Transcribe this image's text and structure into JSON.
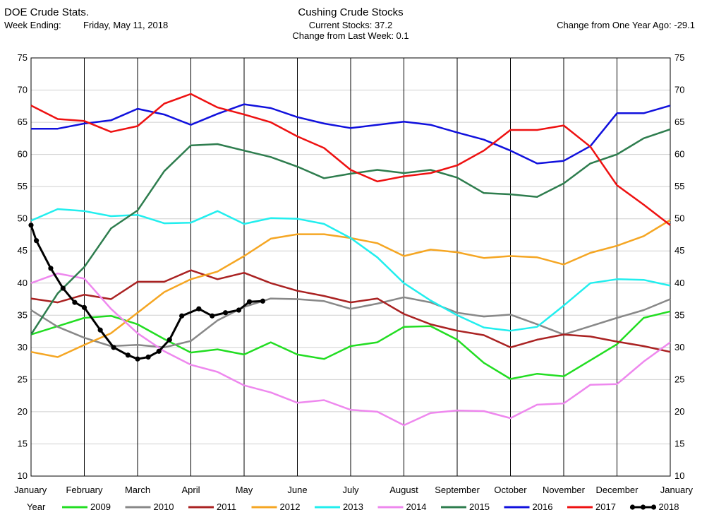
{
  "header": {
    "left_title": "DOE Crude Stats.",
    "week_label": "Week Ending:",
    "week_date": "Friday, May 11, 2018",
    "center_title": "Cushing Crude Stocks",
    "current_stocks": "Current Stocks:  37.2",
    "change_week": "Change from Last Week:  0.1",
    "change_year": "Change from One Year Ago: -29.1"
  },
  "chart_data": {
    "type": "line",
    "title": "Cushing Crude Stocks",
    "ylim": [
      10,
      75
    ],
    "yticks": [
      10,
      15,
      20,
      25,
      30,
      35,
      40,
      45,
      50,
      55,
      60,
      65,
      70,
      75
    ],
    "xlim": [
      0,
      12
    ],
    "xtick_labels": [
      "January",
      "February",
      "March",
      "April",
      "May",
      "June",
      "July",
      "August",
      "September",
      "October",
      "November",
      "December",
      "January"
    ],
    "grid": true,
    "legend_title": "Year",
    "legend_position": "bottom",
    "series": [
      {
        "name": "2009",
        "color": "#22dd22",
        "marker": false,
        "x": [
          0,
          0.5,
          1,
          1.5,
          2,
          2.5,
          3,
          3.5,
          4,
          4.5,
          5,
          5.5,
          6,
          6.5,
          7,
          7.5,
          8,
          8.5,
          9,
          9.5,
          10,
          10.5,
          11,
          11.5,
          12
        ],
        "y": [
          32.0,
          33.3,
          34.6,
          34.9,
          33.6,
          31.3,
          29.2,
          29.7,
          28.9,
          30.8,
          28.9,
          28.2,
          30.2,
          30.8,
          33.2,
          33.3,
          31.2,
          27.6,
          25.1,
          25.9,
          25.5,
          28.0,
          30.5,
          34.6,
          35.6
        ]
      },
      {
        "name": "2010",
        "color": "#888888",
        "marker": false,
        "x": [
          0,
          0.5,
          1,
          1.5,
          2,
          2.5,
          3,
          3.5,
          4,
          4.5,
          5,
          5.5,
          6,
          6.5,
          7,
          7.5,
          8,
          8.5,
          9,
          9.5,
          10,
          10.5,
          11,
          11.5,
          12
        ],
        "y": [
          35.8,
          33.2,
          31.5,
          30.2,
          30.4,
          30.0,
          31.0,
          34.2,
          36.3,
          37.6,
          37.5,
          37.2,
          36.0,
          36.8,
          37.8,
          37.0,
          35.4,
          34.8,
          35.1,
          33.6,
          32.0,
          33.3,
          34.6,
          35.8,
          37.5
        ]
      },
      {
        "name": "2011",
        "color": "#aa2222",
        "marker": false,
        "x": [
          0,
          0.5,
          1,
          1.5,
          2,
          2.5,
          3,
          3.5,
          4,
          4.5,
          5,
          5.5,
          6,
          6.5,
          7,
          7.5,
          8,
          8.5,
          9,
          9.5,
          10,
          10.5,
          11,
          11.5,
          12
        ],
        "y": [
          37.6,
          37.0,
          38.2,
          37.5,
          40.2,
          40.2,
          42.0,
          40.6,
          41.6,
          40.0,
          38.8,
          38.0,
          37.0,
          37.6,
          35.2,
          33.6,
          32.6,
          31.9,
          30.0,
          31.2,
          32.0,
          31.7,
          30.9,
          30.2,
          29.3
        ]
      },
      {
        "name": "2012",
        "color": "#f5a623",
        "marker": false,
        "x": [
          0,
          0.5,
          1,
          1.5,
          2,
          2.5,
          3,
          3.5,
          4,
          4.5,
          5,
          5.5,
          6,
          6.5,
          7,
          7.5,
          8,
          8.5,
          9,
          9.5,
          10,
          10.5,
          11,
          11.5,
          12
        ],
        "y": [
          29.3,
          28.5,
          30.4,
          32.2,
          35.4,
          38.6,
          40.6,
          41.8,
          44.2,
          46.9,
          47.6,
          47.6,
          47.0,
          46.2,
          44.2,
          45.2,
          44.8,
          43.9,
          44.2,
          44.0,
          42.9,
          44.7,
          45.8,
          47.3,
          49.8
        ]
      },
      {
        "name": "2013",
        "color": "#22eeee",
        "marker": false,
        "x": [
          0,
          0.5,
          1,
          1.5,
          2,
          2.5,
          3,
          3.5,
          4,
          4.5,
          5,
          5.5,
          6,
          6.5,
          7,
          7.5,
          8,
          8.5,
          9,
          9.5,
          10,
          10.5,
          11,
          11.5,
          12
        ],
        "y": [
          49.7,
          51.5,
          51.2,
          50.4,
          50.6,
          49.3,
          49.4,
          51.2,
          49.2,
          50.1,
          50.0,
          49.2,
          47.0,
          44.0,
          40.0,
          37.3,
          35.0,
          33.1,
          32.6,
          33.2,
          36.5,
          40.0,
          40.6,
          40.5,
          39.6
        ]
      },
      {
        "name": "2014",
        "color": "#ee88ee",
        "marker": false,
        "x": [
          0,
          0.5,
          1,
          1.5,
          2,
          2.5,
          3,
          3.5,
          4,
          4.5,
          5,
          5.5,
          6,
          6.5,
          7,
          7.5,
          8,
          8.5,
          9,
          9.5,
          10,
          10.5,
          11,
          11.5,
          12
        ],
        "y": [
          40.0,
          41.5,
          40.7,
          36.0,
          32.2,
          29.4,
          27.3,
          26.2,
          24.1,
          23.0,
          21.4,
          21.8,
          20.3,
          20.0,
          17.9,
          19.8,
          20.2,
          20.1,
          19.0,
          21.1,
          21.3,
          24.2,
          24.3,
          27.8,
          30.8
        ]
      },
      {
        "name": "2015",
        "color": "#2e7d4e",
        "marker": false,
        "x": [
          0,
          0.5,
          1,
          1.5,
          2,
          2.5,
          3,
          3.5,
          4,
          4.5,
          5,
          5.5,
          6,
          6.5,
          7,
          7.5,
          8,
          8.5,
          9,
          9.5,
          10,
          10.5,
          11,
          11.5,
          12
        ],
        "y": [
          32.0,
          38.4,
          42.5,
          48.5,
          51.3,
          57.4,
          61.4,
          61.6,
          60.6,
          59.6,
          58.1,
          56.3,
          57.0,
          57.6,
          57.1,
          57.6,
          56.4,
          54.0,
          53.8,
          53.4,
          55.5,
          58.6,
          60.0,
          62.5,
          63.9
        ]
      },
      {
        "name": "2016",
        "color": "#1111dd",
        "marker": false,
        "x": [
          0,
          0.5,
          1,
          1.5,
          2,
          2.5,
          3,
          3.5,
          4,
          4.5,
          5,
          5.5,
          6,
          6.5,
          7,
          7.5,
          8,
          8.5,
          9,
          9.5,
          10,
          10.5,
          11,
          11.5,
          12
        ],
        "y": [
          64.0,
          64.0,
          64.8,
          65.3,
          67.1,
          66.2,
          64.6,
          66.3,
          67.8,
          67.2,
          65.8,
          64.8,
          64.1,
          64.6,
          65.1,
          64.6,
          63.4,
          62.3,
          60.6,
          58.6,
          59.0,
          61.3,
          66.4,
          66.4,
          67.6
        ]
      },
      {
        "name": "2017",
        "color": "#ee1111",
        "marker": false,
        "x": [
          0,
          0.5,
          1,
          1.5,
          2,
          2.5,
          3,
          3.5,
          4,
          4.5,
          5,
          5.5,
          6,
          6.5,
          7,
          7.5,
          8,
          8.5,
          9,
          9.5,
          10,
          10.5,
          11,
          11.5,
          12
        ],
        "y": [
          67.6,
          65.5,
          65.2,
          63.5,
          64.4,
          67.9,
          69.4,
          67.3,
          66.2,
          65.0,
          62.8,
          61.0,
          57.6,
          55.8,
          56.6,
          57.1,
          58.3,
          60.6,
          63.8,
          63.8,
          64.5,
          61.2,
          55.2,
          52.2,
          49.0
        ]
      },
      {
        "name": "2018",
        "color": "#000000",
        "marker": true,
        "x": [
          0,
          0.1,
          0.37,
          0.6,
          0.82,
          1.0,
          1.3,
          1.55,
          1.82,
          2.0,
          2.2,
          2.4,
          2.6,
          2.83,
          3.15,
          3.4,
          3.65,
          3.9,
          4.1,
          4.35
        ],
        "y": [
          49.0,
          46.6,
          42.3,
          39.2,
          37.0,
          36.2,
          32.7,
          30.0,
          28.8,
          28.2,
          28.5,
          29.4,
          31.2,
          34.9,
          36.0,
          34.9,
          35.4,
          35.8,
          37.1,
          37.2
        ]
      }
    ]
  }
}
